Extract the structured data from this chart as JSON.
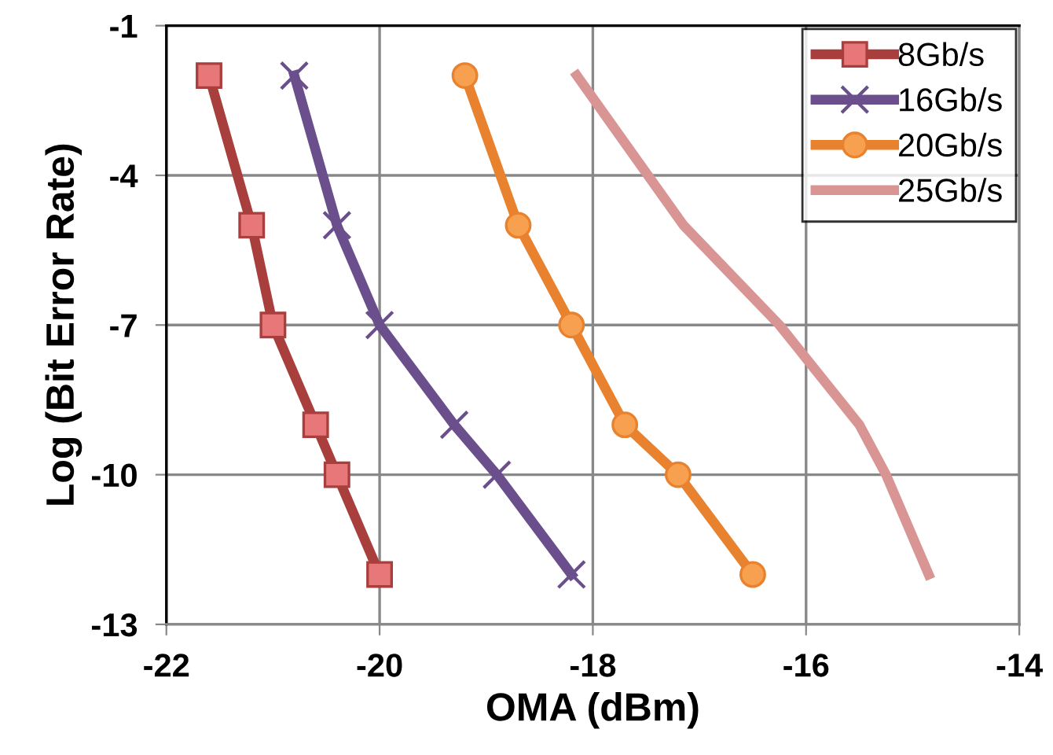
{
  "chart_data": {
    "type": "line",
    "xlabel": "OMA (dBm)",
    "ylabel": "Log (Bit Error Rate)",
    "xlim": [
      -22,
      -14
    ],
    "xticks": [
      -22,
      -20,
      -18,
      -16,
      -14
    ],
    "ylim": [
      -13,
      -1
    ],
    "yticks": [
      -13,
      -10,
      -7,
      -4,
      -1
    ],
    "grid": true,
    "legend": "top right",
    "series": [
      {
        "name": "8Gb/s",
        "color": "#a93f3c",
        "marker": "square",
        "x": [
          -21.6,
          -21.2,
          -21.0,
          -20.6,
          -20.4,
          -20.0
        ],
        "values": [
          -2,
          -5,
          -7,
          -9,
          -10,
          -12
        ]
      },
      {
        "name": "16Gb/s",
        "color": "#6a4f8c",
        "marker": "cross",
        "x": [
          -20.8,
          -20.4,
          -20.0,
          -19.3,
          -18.9,
          -18.2
        ],
        "values": [
          -2,
          -5,
          -7,
          -9,
          -10,
          -12
        ]
      },
      {
        "name": "20Gb/s",
        "color": "#e8822e",
        "marker": "circle",
        "x": [
          -19.2,
          -18.7,
          -18.2,
          -17.7,
          -17.2,
          -16.5
        ],
        "values": [
          -2,
          -5,
          -7,
          -9,
          -10,
          -12
        ]
      },
      {
        "name": "25Gb/s",
        "color": "#d99594",
        "marker": "none",
        "x": [
          -18.15,
          -17.15,
          -16.25,
          -15.5,
          -15.25,
          -14.85
        ],
        "values": [
          -2,
          -5,
          -7,
          -9,
          -10,
          -12
        ]
      }
    ]
  }
}
